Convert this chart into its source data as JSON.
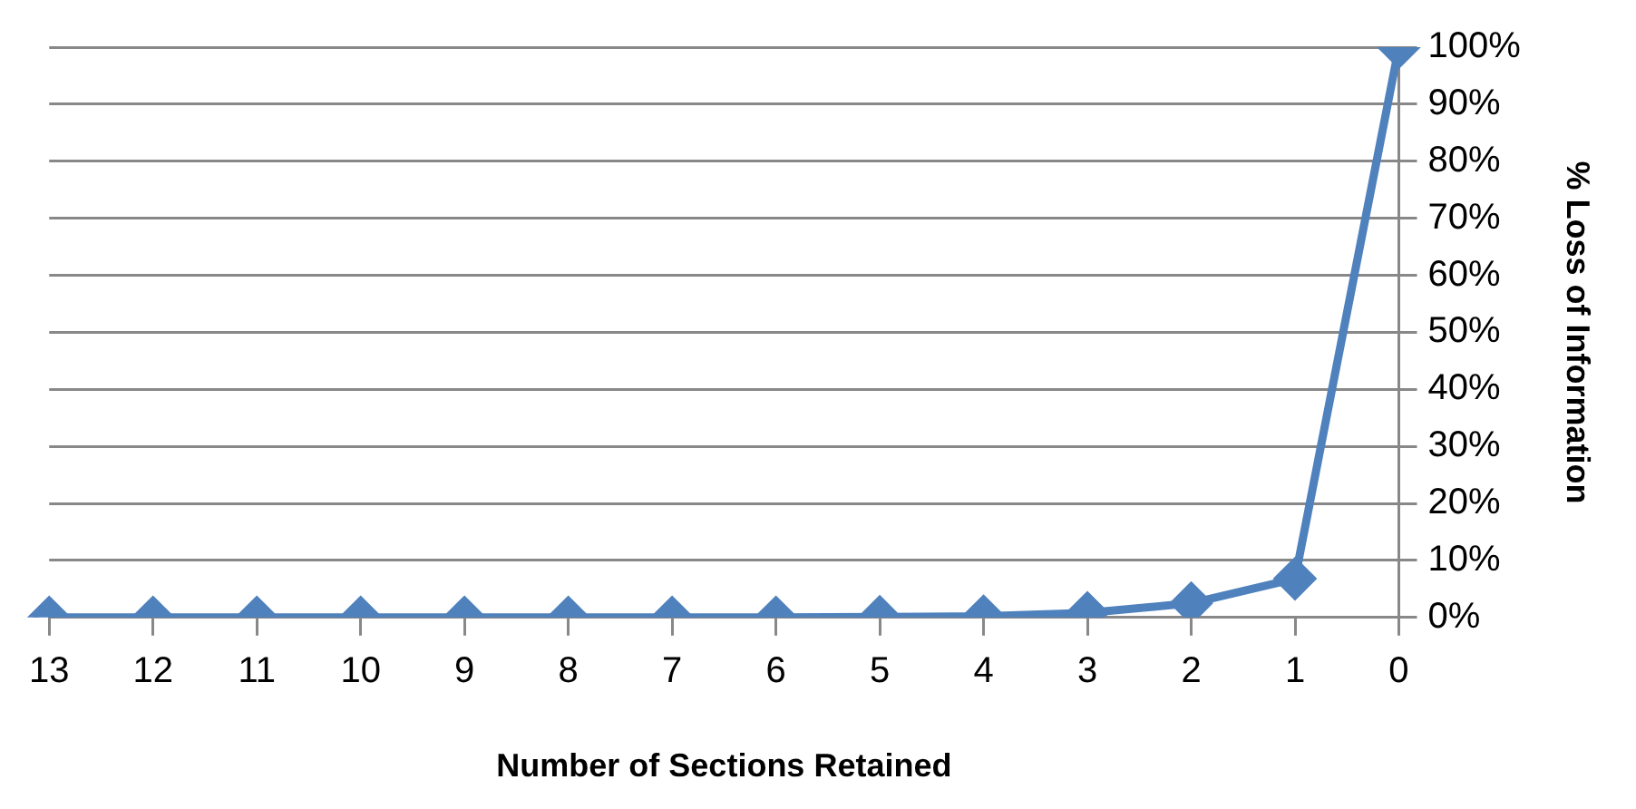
{
  "chart_data": {
    "type": "line",
    "xlabel": "Number of Sections Retained",
    "ylabel": "% Loss of Information",
    "categories": [
      "13",
      "12",
      "11",
      "10",
      "9",
      "8",
      "7",
      "6",
      "5",
      "4",
      "3",
      "2",
      "1",
      "0"
    ],
    "series": [
      {
        "color": "#4f81bd",
        "values": [
          0,
          0,
          0,
          0,
          0,
          0,
          0,
          0,
          0.1,
          0.2,
          0.8,
          2.5,
          6.8,
          100
        ]
      }
    ],
    "ylim": [
      0,
      100
    ],
    "yticks": [
      {
        "value": 0,
        "label": "0%"
      },
      {
        "value": 10,
        "label": "10%"
      },
      {
        "value": 20,
        "label": "20%"
      },
      {
        "value": 30,
        "label": "30%"
      },
      {
        "value": 40,
        "label": "40%"
      },
      {
        "value": 50,
        "label": "50%"
      },
      {
        "value": 60,
        "label": "60%"
      },
      {
        "value": 70,
        "label": "70%"
      },
      {
        "value": 80,
        "label": "80%"
      },
      {
        "value": 90,
        "label": "90%"
      },
      {
        "value": 100,
        "label": "100%"
      }
    ],
    "grid": "y",
    "legend": false,
    "marker": "diamond",
    "line_style": "solid"
  }
}
